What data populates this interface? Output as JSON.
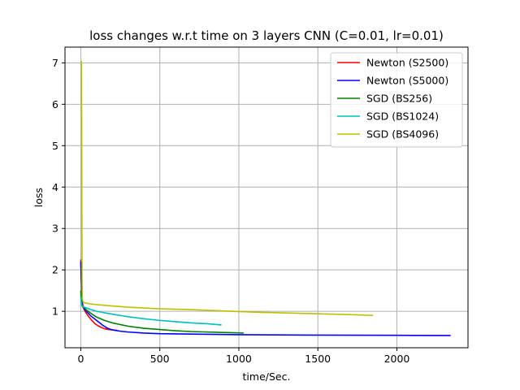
{
  "chart_data": {
    "type": "line",
    "title": "loss changes w.r.t time on 3 layers CNN (C=0.01, lr=0.01)",
    "xlabel": "time/Sec.",
    "ylabel": "loss",
    "xlim": [
      -100,
      2450
    ],
    "ylim": [
      0.12,
      7.38
    ],
    "xticks": [
      0,
      500,
      1000,
      1500,
      2000
    ],
    "yticks": [
      1,
      2,
      3,
      4,
      5,
      6,
      7
    ],
    "grid": true,
    "legend_position": "top-right",
    "series": [
      {
        "name": "Newton (S2500)",
        "color": "#ff0000",
        "x": [
          0,
          3,
          6,
          10,
          20,
          35,
          50,
          70,
          90,
          110,
          130,
          150,
          175,
          200,
          230
        ],
        "y": [
          2.25,
          1.85,
          1.55,
          1.2,
          1.05,
          0.95,
          0.87,
          0.78,
          0.7,
          0.65,
          0.61,
          0.58,
          0.56,
          0.55,
          0.54
        ]
      },
      {
        "name": "Newton (S5000)",
        "color": "#0000ff",
        "x": [
          0,
          3,
          6,
          10,
          30,
          60,
          100,
          140,
          170,
          200,
          250,
          300,
          400,
          500,
          700,
          1000,
          1500,
          2000,
          2340
        ],
        "y": [
          2.2,
          1.8,
          1.5,
          1.12,
          1.02,
          0.9,
          0.78,
          0.66,
          0.59,
          0.55,
          0.52,
          0.5,
          0.475,
          0.46,
          0.45,
          0.435,
          0.425,
          0.42,
          0.415
        ]
      },
      {
        "name": "SGD (BS256)",
        "color": "#008000",
        "x": [
          0,
          2,
          5,
          10,
          30,
          60,
          100,
          150,
          200,
          300,
          400,
          500,
          600,
          700,
          800,
          900,
          1000,
          1030
        ],
        "y": [
          1.5,
          1.3,
          1.18,
          1.13,
          1.05,
          0.96,
          0.86,
          0.78,
          0.72,
          0.64,
          0.59,
          0.56,
          0.53,
          0.51,
          0.5,
          0.49,
          0.48,
          0.475
        ]
      },
      {
        "name": "SGD (BS1024)",
        "color": "#00bfbf",
        "x": [
          0,
          2,
          5,
          10,
          50,
          100,
          200,
          300,
          400,
          500,
          600,
          700,
          800,
          890
        ],
        "y": [
          1.35,
          1.22,
          1.15,
          1.12,
          1.06,
          1.0,
          0.93,
          0.87,
          0.82,
          0.78,
          0.75,
          0.72,
          0.7,
          0.67
        ]
      },
      {
        "name": "SGD (BS4096)",
        "color": "#bfbf00",
        "x": [
          4,
          5,
          6,
          7,
          8,
          10,
          15,
          30,
          60,
          100,
          200,
          300,
          400,
          500,
          700,
          900,
          1100,
          1300,
          1500,
          1700,
          1850
        ],
        "y": [
          7.05,
          6.5,
          4.8,
          3.0,
          1.8,
          1.3,
          1.22,
          1.2,
          1.18,
          1.16,
          1.13,
          1.1,
          1.08,
          1.06,
          1.04,
          1.01,
          0.98,
          0.96,
          0.94,
          0.92,
          0.9
        ]
      }
    ]
  }
}
